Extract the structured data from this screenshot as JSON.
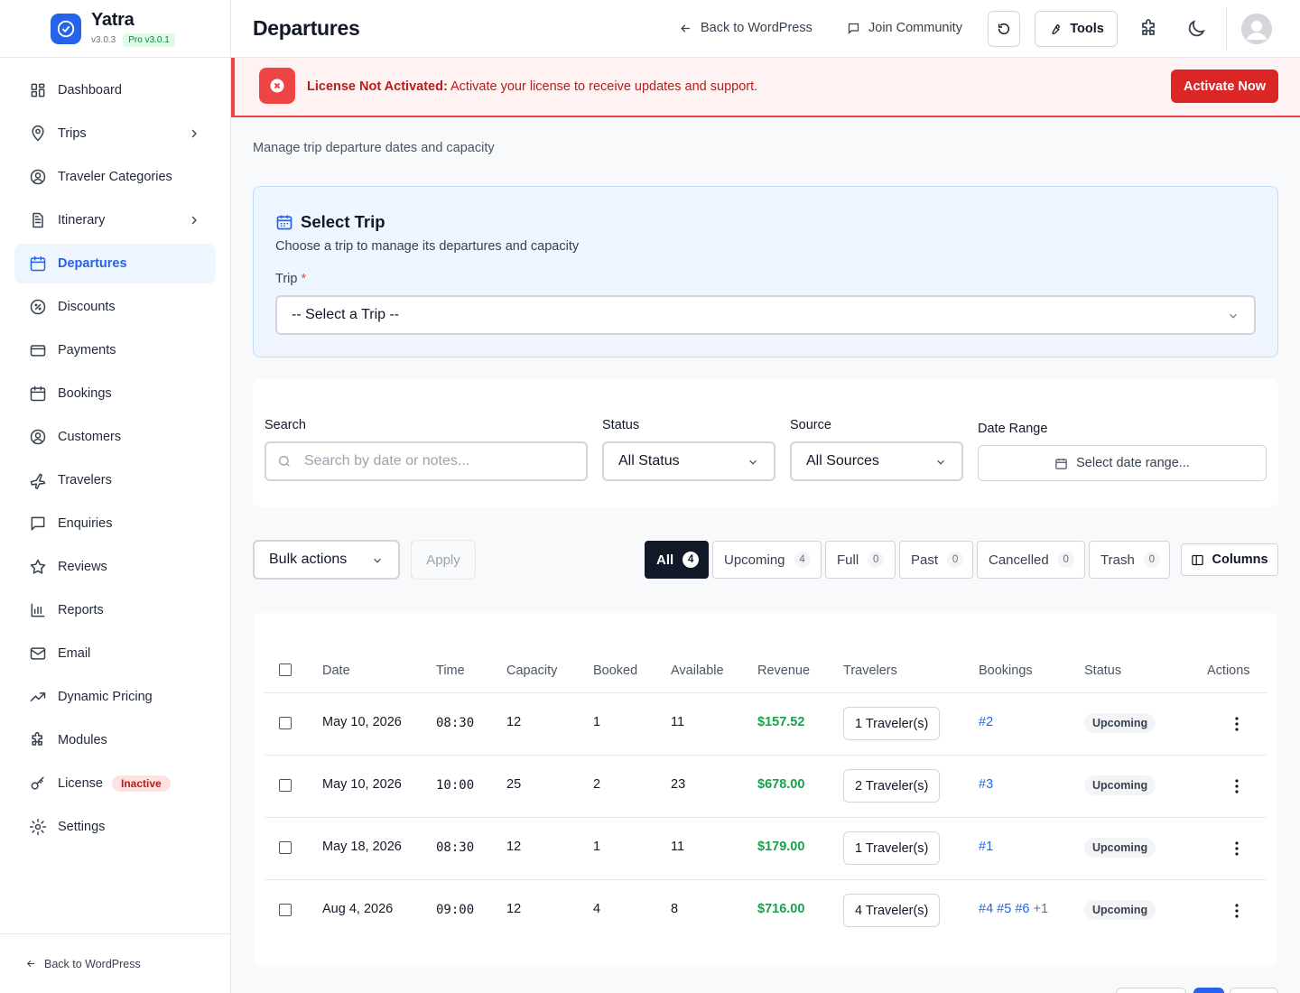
{
  "brand": {
    "name": "Yatra",
    "version": "v3.0.3",
    "pro": "Pro v3.0.1"
  },
  "sidebar": {
    "items": [
      {
        "label": "Dashboard",
        "icon": "dashboard-icon"
      },
      {
        "label": "Trips",
        "icon": "map-pin-icon",
        "chevron": true
      },
      {
        "label": "Traveler Categories",
        "icon": "user-circle-icon"
      },
      {
        "label": "Itinerary",
        "icon": "document-icon",
        "chevron": true
      },
      {
        "label": "Departures",
        "icon": "calendar-icon",
        "active": true
      },
      {
        "label": "Discounts",
        "icon": "discount-icon"
      },
      {
        "label": "Payments",
        "icon": "credit-card-icon"
      },
      {
        "label": "Bookings",
        "icon": "calendar-icon"
      },
      {
        "label": "Customers",
        "icon": "user-circle-icon"
      },
      {
        "label": "Travelers",
        "icon": "plane-icon"
      },
      {
        "label": "Enquiries",
        "icon": "message-icon"
      },
      {
        "label": "Reviews",
        "icon": "star-icon"
      },
      {
        "label": "Reports",
        "icon": "bar-chart-icon"
      },
      {
        "label": "Email",
        "icon": "mail-icon"
      },
      {
        "label": "Dynamic Pricing",
        "icon": "trending-up-icon"
      },
      {
        "label": "Modules",
        "icon": "puzzle-icon"
      },
      {
        "label": "License",
        "icon": "key-icon",
        "badge": "Inactive"
      },
      {
        "label": "Settings",
        "icon": "gear-icon"
      }
    ],
    "footer": "Back to WordPress"
  },
  "header": {
    "title": "Departures",
    "back": "Back to WordPress",
    "community": "Join Community",
    "tools": "Tools"
  },
  "banner": {
    "bold": "License Not Activated:",
    "text": " Activate your license to receive updates and support.",
    "button": "Activate Now"
  },
  "page": {
    "subtitle": "Manage trip departure dates and capacity"
  },
  "select_trip": {
    "title": "Select Trip",
    "desc": "Choose a trip to manage its departures and capacity",
    "label": "Trip",
    "required": "*",
    "value": "-- Select a Trip --"
  },
  "filters": {
    "search_label": "Search",
    "search_placeholder": "Search by date or notes...",
    "status_label": "Status",
    "status_value": "All Status",
    "source_label": "Source",
    "source_value": "All Sources",
    "date_label": "Date Range",
    "date_placeholder": "Select date range..."
  },
  "toolbar": {
    "bulk": "Bulk actions",
    "apply": "Apply",
    "tabs": [
      {
        "label": "All",
        "count": "4",
        "active": true
      },
      {
        "label": "Upcoming",
        "count": "4"
      },
      {
        "label": "Full",
        "count": "0"
      },
      {
        "label": "Past",
        "count": "0"
      },
      {
        "label": "Cancelled",
        "count": "0"
      },
      {
        "label": "Trash",
        "count": "0"
      }
    ],
    "columns": "Columns"
  },
  "table": {
    "headers": [
      "Date",
      "Time",
      "Capacity",
      "Booked",
      "Available",
      "Revenue",
      "Travelers",
      "Bookings",
      "Status",
      "Actions"
    ],
    "rows": [
      {
        "date": "May 10, 2026",
        "time": "08:30",
        "capacity": "12",
        "booked": "1",
        "available": "11",
        "revenue": "$157.52",
        "travelers": "1 Traveler(s)",
        "bookings": [
          "#2"
        ],
        "more": "",
        "status": "Upcoming"
      },
      {
        "date": "May 10, 2026",
        "time": "10:00",
        "capacity": "25",
        "booked": "2",
        "available": "23",
        "revenue": "$678.00",
        "travelers": "2 Traveler(s)",
        "bookings": [
          "#3"
        ],
        "more": "",
        "status": "Upcoming"
      },
      {
        "date": "May 18, 2026",
        "time": "08:30",
        "capacity": "12",
        "booked": "1",
        "available": "11",
        "revenue": "$179.00",
        "travelers": "1 Traveler(s)",
        "bookings": [
          "#1"
        ],
        "more": "",
        "status": "Upcoming"
      },
      {
        "date": "Aug 4, 2026",
        "time": "09:00",
        "capacity": "12",
        "booked": "4",
        "available": "8",
        "revenue": "$716.00",
        "travelers": "4 Traveler(s)",
        "bookings": [
          "#4",
          "#5",
          "#6"
        ],
        "more": "+1",
        "status": "Upcoming"
      }
    ]
  }
}
